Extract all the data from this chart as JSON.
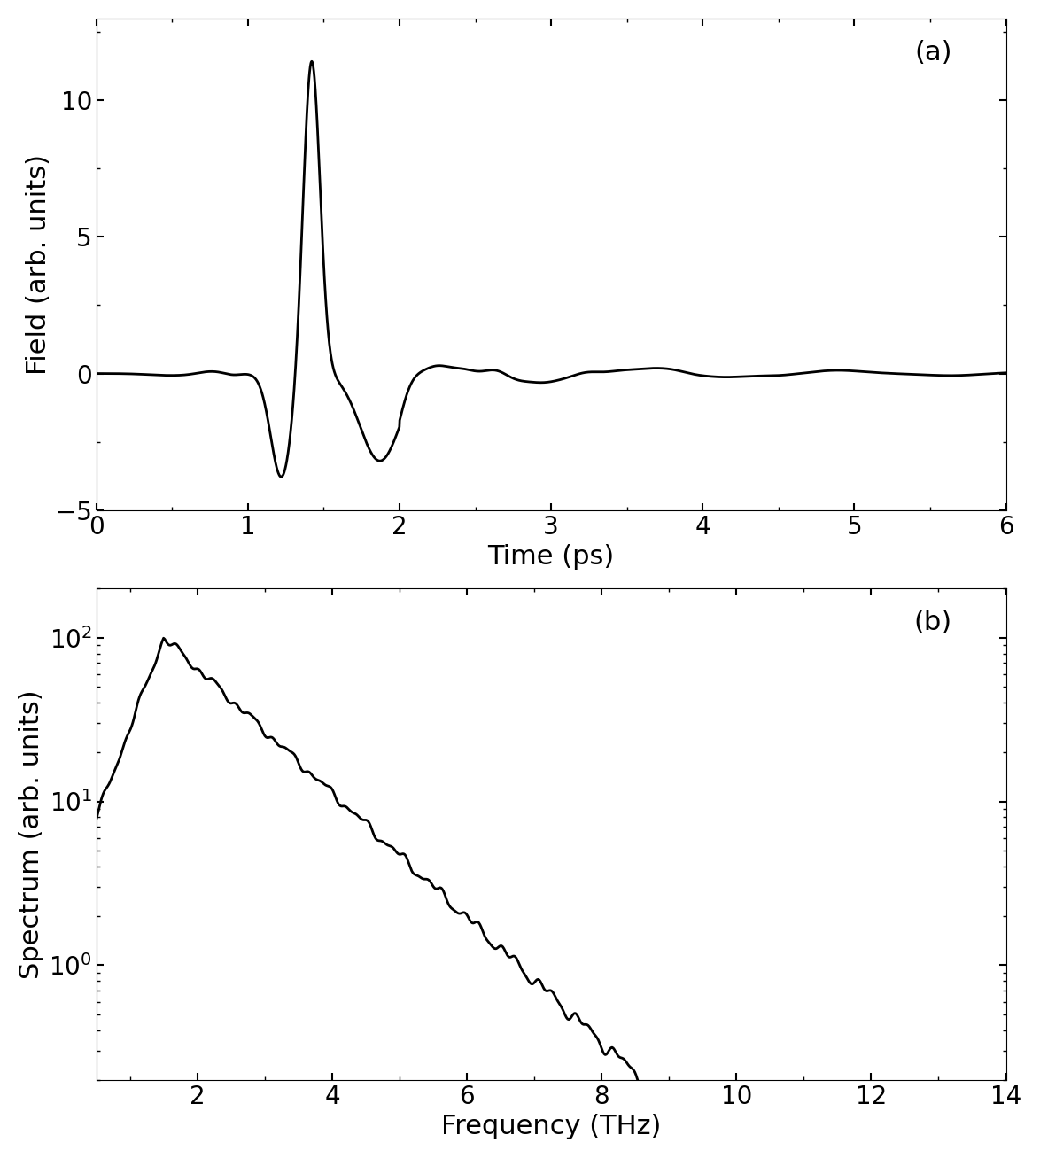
{
  "fig_width": 11.74,
  "fig_height": 13.07,
  "dpi": 100,
  "background_color": "#ffffff",
  "line_color": "#000000",
  "line_width": 2.0,
  "panel_a": {
    "label": "(a)",
    "xlabel": "Time (ps)",
    "ylabel": "Field (arb. units)",
    "xlim": [
      0,
      6
    ],
    "ylim": [
      -5,
      13
    ],
    "xticks": [
      0,
      1,
      2,
      3,
      4,
      5,
      6
    ],
    "yticks": [
      -5,
      0,
      5,
      10
    ],
    "label_fontsize": 22,
    "tick_fontsize": 20
  },
  "panel_b": {
    "label": "(b)",
    "xlabel": "Frequency (THz)",
    "ylabel": "Spectrum (arb. units)",
    "xlim": [
      0.5,
      14
    ],
    "ylim_log": [
      0.2,
      200
    ],
    "xticks": [
      2,
      4,
      6,
      8,
      10,
      12,
      14
    ],
    "label_fontsize": 22,
    "tick_fontsize": 20
  }
}
